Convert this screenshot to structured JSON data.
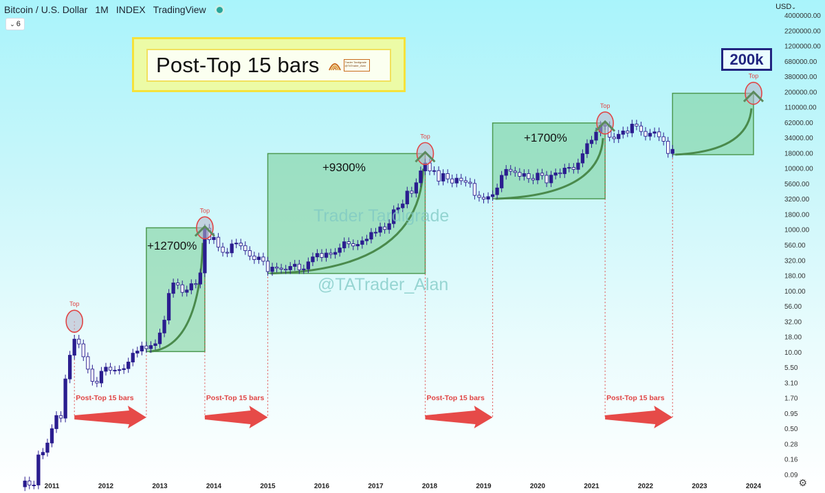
{
  "header": {
    "symbol": "Bitcoin / U.S. Dollar",
    "interval": "1M",
    "type": "INDEX",
    "source": "TradingView",
    "indicator_count": "6",
    "currency": "USD"
  },
  "title_box": {
    "text": "Post-Top 15 bars",
    "logo_line1": "Trader Tardigrade",
    "logo_line2": "@TATrader_Alan"
  },
  "target_label": "200k",
  "gains": [
    {
      "text": "+12700%"
    },
    {
      "text": "+9300%"
    },
    {
      "text": "+1700%"
    }
  ],
  "watermark": {
    "line1": "Trader Tardigrade",
    "line2": "@TATrader_Alan"
  },
  "top_label": "Top",
  "post_top_label": "Post-Top 15 bars",
  "chart_data": {
    "type": "candlestick",
    "title": "Bitcoin / U.S. Dollar",
    "scale": "log",
    "y_ticks": [
      "4000000.00",
      "2200000.00",
      "1200000.00",
      "680000.00",
      "380000.00",
      "200000.00",
      "110000.00",
      "62000.00",
      "34000.00",
      "18000.00",
      "10000.00",
      "5600.00",
      "3200.00",
      "1800.00",
      "1000.00",
      "560.00",
      "320.00",
      "180.00",
      "100.00",
      "56.00",
      "32.00",
      "18.00",
      "10.00",
      "5.50",
      "3.10",
      "1.70",
      "0.95",
      "0.50",
      "0.28",
      "0.16",
      "0.09"
    ],
    "x_ticks": [
      "2011",
      "2012",
      "2013",
      "2014",
      "2015",
      "2016",
      "2017",
      "2018",
      "2019",
      "2020",
      "2021",
      "2022",
      "2023",
      "2024"
    ],
    "tops": [
      {
        "date": "2011-06",
        "value": 32
      },
      {
        "date": "2013-11",
        "value": 1150
      },
      {
        "date": "2017-12",
        "value": 19800
      },
      {
        "date": "2021-04",
        "value": 64000
      },
      {
        "date": "2024-01",
        "value": 200000
      }
    ],
    "cycle_boxes": [
      {
        "start": "2012-10",
        "end": "2013-11",
        "low": 10,
        "high": 1150,
        "gain": "+12700%"
      },
      {
        "start": "2015-01",
        "end": "2017-12",
        "low": 200,
        "high": 19800,
        "gain": "+9300%"
      },
      {
        "start": "2019-03",
        "end": "2021-04",
        "low": 3500,
        "high": 64000,
        "gain": "+1700%"
      },
      {
        "start": "2022-07",
        "end": "2024-01",
        "low": 19000,
        "high": 200000,
        "gain": ""
      }
    ],
    "post_top_spans": [
      {
        "from": "2011-06",
        "to": "2012-10"
      },
      {
        "from": "2013-11",
        "to": "2015-01"
      },
      {
        "from": "2017-12",
        "to": "2019-03"
      },
      {
        "from": "2021-04",
        "to": "2022-07"
      }
    ],
    "monthly_close": [
      {
        "date": "2010-07",
        "value": 0.07
      },
      {
        "date": "2010-08",
        "value": 0.06
      },
      {
        "date": "2010-09",
        "value": 0.06
      },
      {
        "date": "2010-10",
        "value": 0.19
      },
      {
        "date": "2010-11",
        "value": 0.21
      },
      {
        "date": "2010-12",
        "value": 0.3
      },
      {
        "date": "2011-01",
        "value": 0.52
      },
      {
        "date": "2011-02",
        "value": 0.86
      },
      {
        "date": "2011-03",
        "value": 0.78
      },
      {
        "date": "2011-04",
        "value": 3.5
      },
      {
        "date": "2011-05",
        "value": 8.7
      },
      {
        "date": "2011-06",
        "value": 16.1
      },
      {
        "date": "2011-07",
        "value": 13.4
      },
      {
        "date": "2011-08",
        "value": 8.2
      },
      {
        "date": "2011-09",
        "value": 5.1
      },
      {
        "date": "2011-10",
        "value": 3.2
      },
      {
        "date": "2011-11",
        "value": 3.0
      },
      {
        "date": "2011-12",
        "value": 4.7
      },
      {
        "date": "2012-01",
        "value": 5.5
      },
      {
        "date": "2012-02",
        "value": 4.9
      },
      {
        "date": "2012-03",
        "value": 4.9
      },
      {
        "date": "2012-04",
        "value": 5.0
      },
      {
        "date": "2012-05",
        "value": 5.2
      },
      {
        "date": "2012-06",
        "value": 6.7
      },
      {
        "date": "2012-07",
        "value": 9.4
      },
      {
        "date": "2012-08",
        "value": 10.2
      },
      {
        "date": "2012-09",
        "value": 12.4
      },
      {
        "date": "2012-10",
        "value": 11.2
      },
      {
        "date": "2012-11",
        "value": 12.6
      },
      {
        "date": "2012-12",
        "value": 13.5
      },
      {
        "date": "2013-01",
        "value": 20.4
      },
      {
        "date": "2013-02",
        "value": 33.4
      },
      {
        "date": "2013-03",
        "value": 93
      },
      {
        "date": "2013-04",
        "value": 139
      },
      {
        "date": "2013-05",
        "value": 129
      },
      {
        "date": "2013-06",
        "value": 97
      },
      {
        "date": "2013-07",
        "value": 106
      },
      {
        "date": "2013-08",
        "value": 135
      },
      {
        "date": "2013-09",
        "value": 133
      },
      {
        "date": "2013-10",
        "value": 204
      },
      {
        "date": "2013-11",
        "value": 1130
      },
      {
        "date": "2013-12",
        "value": 730
      },
      {
        "date": "2014-01",
        "value": 800
      },
      {
        "date": "2014-02",
        "value": 550
      },
      {
        "date": "2014-03",
        "value": 450
      },
      {
        "date": "2014-04",
        "value": 440
      },
      {
        "date": "2014-05",
        "value": 620
      },
      {
        "date": "2014-06",
        "value": 640
      },
      {
        "date": "2014-07",
        "value": 580
      },
      {
        "date": "2014-08",
        "value": 480
      },
      {
        "date": "2014-09",
        "value": 390
      },
      {
        "date": "2014-10",
        "value": 340
      },
      {
        "date": "2014-11",
        "value": 375
      },
      {
        "date": "2014-12",
        "value": 320
      },
      {
        "date": "2015-01",
        "value": 215
      },
      {
        "date": "2015-02",
        "value": 255
      },
      {
        "date": "2015-03",
        "value": 245
      },
      {
        "date": "2015-04",
        "value": 235
      },
      {
        "date": "2015-05",
        "value": 230
      },
      {
        "date": "2015-06",
        "value": 262
      },
      {
        "date": "2015-07",
        "value": 285
      },
      {
        "date": "2015-08",
        "value": 230
      },
      {
        "date": "2015-09",
        "value": 237
      },
      {
        "date": "2015-10",
        "value": 312
      },
      {
        "date": "2015-11",
        "value": 377
      },
      {
        "date": "2015-12",
        "value": 430
      },
      {
        "date": "2016-01",
        "value": 370
      },
      {
        "date": "2016-02",
        "value": 437
      },
      {
        "date": "2016-03",
        "value": 416
      },
      {
        "date": "2016-04",
        "value": 448
      },
      {
        "date": "2016-05",
        "value": 531
      },
      {
        "date": "2016-06",
        "value": 673
      },
      {
        "date": "2016-07",
        "value": 624
      },
      {
        "date": "2016-08",
        "value": 575
      },
      {
        "date": "2016-09",
        "value": 609
      },
      {
        "date": "2016-10",
        "value": 700
      },
      {
        "date": "2016-11",
        "value": 745
      },
      {
        "date": "2016-12",
        "value": 963
      },
      {
        "date": "2017-01",
        "value": 970
      },
      {
        "date": "2017-02",
        "value": 1190
      },
      {
        "date": "2017-03",
        "value": 1080
      },
      {
        "date": "2017-04",
        "value": 1350
      },
      {
        "date": "2017-05",
        "value": 2300
      },
      {
        "date": "2017-06",
        "value": 2480
      },
      {
        "date": "2017-07",
        "value": 2870
      },
      {
        "date": "2017-08",
        "value": 4700
      },
      {
        "date": "2017-09",
        "value": 4340
      },
      {
        "date": "2017-10",
        "value": 6470
      },
      {
        "date": "2017-11",
        "value": 10200
      },
      {
        "date": "2017-12",
        "value": 13800
      },
      {
        "date": "2018-01",
        "value": 10200
      },
      {
        "date": "2018-02",
        "value": 10300
      },
      {
        "date": "2018-03",
        "value": 6900
      },
      {
        "date": "2018-04",
        "value": 9200
      },
      {
        "date": "2018-05",
        "value": 7500
      },
      {
        "date": "2018-06",
        "value": 6400
      },
      {
        "date": "2018-07",
        "value": 7700
      },
      {
        "date": "2018-08",
        "value": 7000
      },
      {
        "date": "2018-09",
        "value": 6600
      },
      {
        "date": "2018-10",
        "value": 6300
      },
      {
        "date": "2018-11",
        "value": 4000
      },
      {
        "date": "2018-12",
        "value": 3700
      },
      {
        "date": "2019-01",
        "value": 3450
      },
      {
        "date": "2019-02",
        "value": 3800
      },
      {
        "date": "2019-03",
        "value": 4100
      },
      {
        "date": "2019-04",
        "value": 5300
      },
      {
        "date": "2019-05",
        "value": 8600
      },
      {
        "date": "2019-06",
        "value": 10800
      },
      {
        "date": "2019-07",
        "value": 10100
      },
      {
        "date": "2019-08",
        "value": 9600
      },
      {
        "date": "2019-09",
        "value": 8300
      },
      {
        "date": "2019-10",
        "value": 9200
      },
      {
        "date": "2019-11",
        "value": 7600
      },
      {
        "date": "2019-12",
        "value": 7200
      },
      {
        "date": "2020-01",
        "value": 9350
      },
      {
        "date": "2020-02",
        "value": 8600
      },
      {
        "date": "2020-03",
        "value": 6450
      },
      {
        "date": "2020-04",
        "value": 8650
      },
      {
        "date": "2020-05",
        "value": 9450
      },
      {
        "date": "2020-06",
        "value": 9150
      },
      {
        "date": "2020-07",
        "value": 11350
      },
      {
        "date": "2020-08",
        "value": 11650
      },
      {
        "date": "2020-09",
        "value": 10800
      },
      {
        "date": "2020-10",
        "value": 13800
      },
      {
        "date": "2020-11",
        "value": 19700
      },
      {
        "date": "2020-12",
        "value": 29000
      },
      {
        "date": "2021-01",
        "value": 33100
      },
      {
        "date": "2021-02",
        "value": 45200
      },
      {
        "date": "2021-03",
        "value": 58800
      },
      {
        "date": "2021-04",
        "value": 57700
      },
      {
        "date": "2021-05",
        "value": 37300
      },
      {
        "date": "2021-06",
        "value": 35000
      },
      {
        "date": "2021-07",
        "value": 41500
      },
      {
        "date": "2021-08",
        "value": 47100
      },
      {
        "date": "2021-09",
        "value": 43800
      },
      {
        "date": "2021-10",
        "value": 61300
      },
      {
        "date": "2021-11",
        "value": 57000
      },
      {
        "date": "2021-12",
        "value": 46300
      },
      {
        "date": "2022-01",
        "value": 38500
      },
      {
        "date": "2022-02",
        "value": 43200
      },
      {
        "date": "2022-03",
        "value": 45500
      },
      {
        "date": "2022-04",
        "value": 37700
      },
      {
        "date": "2022-05",
        "value": 31800
      },
      {
        "date": "2022-06",
        "value": 19900
      },
      {
        "date": "2022-07",
        "value": 23300
      }
    ]
  }
}
